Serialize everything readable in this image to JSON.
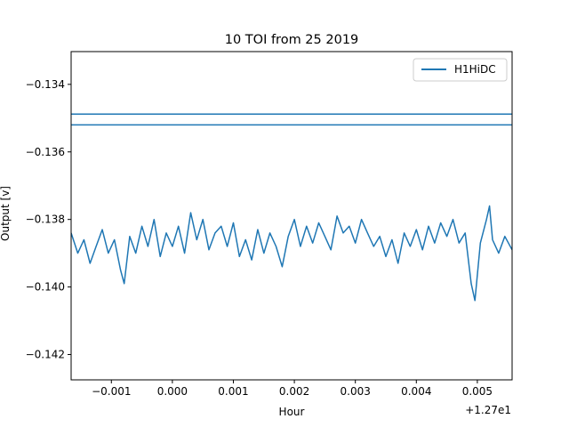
{
  "chart_data": {
    "type": "line",
    "title": "10 TOI from 25 2019",
    "xlabel": "Hour",
    "ylabel": "Output [v]",
    "x_offset_label": "+1.27e1",
    "xlim": [
      -0.00166,
      0.00557
    ],
    "ylim": [
      -0.14275,
      -0.13303
    ],
    "x_ticks": [
      {
        "value": -0.001,
        "label": "−0.001"
      },
      {
        "value": 0.0,
        "label": "0.000"
      },
      {
        "value": 0.001,
        "label": "0.001"
      },
      {
        "value": 0.002,
        "label": "0.002"
      },
      {
        "value": 0.003,
        "label": "0.003"
      },
      {
        "value": 0.004,
        "label": "0.004"
      },
      {
        "value": 0.005,
        "label": "0.005"
      }
    ],
    "y_ticks": [
      {
        "value": -0.134,
        "label": "−0.134"
      },
      {
        "value": -0.136,
        "label": "−0.136"
      },
      {
        "value": -0.138,
        "label": "−0.138"
      },
      {
        "value": -0.14,
        "label": "−0.140"
      },
      {
        "value": -0.142,
        "label": "−0.142"
      }
    ],
    "grid": false,
    "legend": {
      "position": "top-right",
      "entries": [
        "H1HiDC"
      ]
    },
    "series": [
      {
        "name": "H1HiDC",
        "color": "#1f77b4",
        "x": [
          -0.00166,
          -0.00155,
          -0.00145,
          -0.00135,
          -0.00125,
          -0.00115,
          -0.00105,
          -0.00095,
          -0.00085,
          -0.00079,
          -0.0007,
          -0.0006,
          -0.0005,
          -0.0004,
          -0.0003,
          -0.0002,
          -0.0001,
          0.0,
          0.0001,
          0.0002,
          0.0003,
          0.0004,
          0.0005,
          0.0006,
          0.0007,
          0.0008,
          0.0009,
          0.001,
          0.0011,
          0.0012,
          0.0013,
          0.0014,
          0.0015,
          0.0016,
          0.0017,
          0.0018,
          0.0019,
          0.002,
          0.0021,
          0.0022,
          0.0023,
          0.0024,
          0.0025,
          0.0026,
          0.0027,
          0.0028,
          0.0029,
          0.003,
          0.0031,
          0.0032,
          0.0033,
          0.0034,
          0.0035,
          0.0036,
          0.0037,
          0.0038,
          0.0039,
          0.004,
          0.0041,
          0.0042,
          0.0043,
          0.0044,
          0.0045,
          0.0046,
          0.0047,
          0.0048,
          0.0049,
          0.00496,
          0.00505,
          0.00515,
          0.0052,
          0.00525,
          0.00535,
          0.00545,
          0.00557
        ],
        "y": [
          -0.1384,
          -0.139,
          -0.1386,
          -0.1393,
          -0.1388,
          -0.1383,
          -0.139,
          -0.1386,
          -0.1395,
          -0.1399,
          -0.1385,
          -0.139,
          -0.1382,
          -0.1388,
          -0.138,
          -0.1391,
          -0.1384,
          -0.1388,
          -0.1382,
          -0.139,
          -0.1378,
          -0.1386,
          -0.138,
          -0.1389,
          -0.1384,
          -0.1382,
          -0.1388,
          -0.1381,
          -0.1391,
          -0.1386,
          -0.1392,
          -0.1383,
          -0.139,
          -0.1384,
          -0.1388,
          -0.1394,
          -0.1385,
          -0.138,
          -0.1388,
          -0.1382,
          -0.1387,
          -0.1381,
          -0.1385,
          -0.1389,
          -0.1379,
          -0.1384,
          -0.1382,
          -0.1387,
          -0.138,
          -0.1384,
          -0.1388,
          -0.1385,
          -0.1391,
          -0.1386,
          -0.1393,
          -0.1384,
          -0.1388,
          -0.1383,
          -0.1389,
          -0.1382,
          -0.1387,
          -0.1381,
          -0.1385,
          -0.138,
          -0.1387,
          -0.1384,
          -0.1399,
          -0.1404,
          -0.1387,
          -0.138,
          -0.1376,
          -0.1386,
          -0.139,
          -0.1385,
          -0.1389
        ]
      },
      {
        "name": "",
        "color": "#1f77b4",
        "x": [
          -0.00166,
          0.00557
        ],
        "y": [
          -0.13488,
          -0.13488
        ]
      },
      {
        "name": "",
        "color": "#1f77b4",
        "x": [
          -0.00166,
          0.00557
        ],
        "y": [
          -0.1352,
          -0.1352
        ]
      }
    ]
  }
}
